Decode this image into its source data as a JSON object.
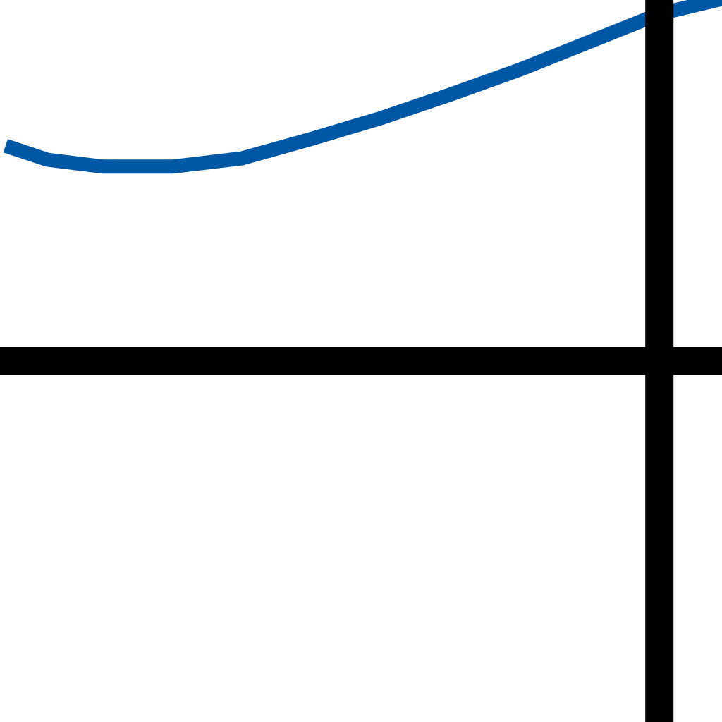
{
  "chart_data": {
    "type": "line",
    "grid": true,
    "colors": {
      "series": "#0057a3",
      "axis": "#000000",
      "background": "#ffffff"
    },
    "series": [
      {
        "x": [
          -4.7,
          -4.4,
          -4.0,
          -3.5,
          -3.0,
          -2.5,
          -2.0,
          -1.5,
          -1.0,
          -0.5,
          0.0,
          0.5
        ],
        "values": [
          1.55,
          1.45,
          1.4,
          1.4,
          1.46,
          1.6,
          1.75,
          1.92,
          2.1,
          2.3,
          2.5,
          2.62
        ]
      }
    ]
  }
}
